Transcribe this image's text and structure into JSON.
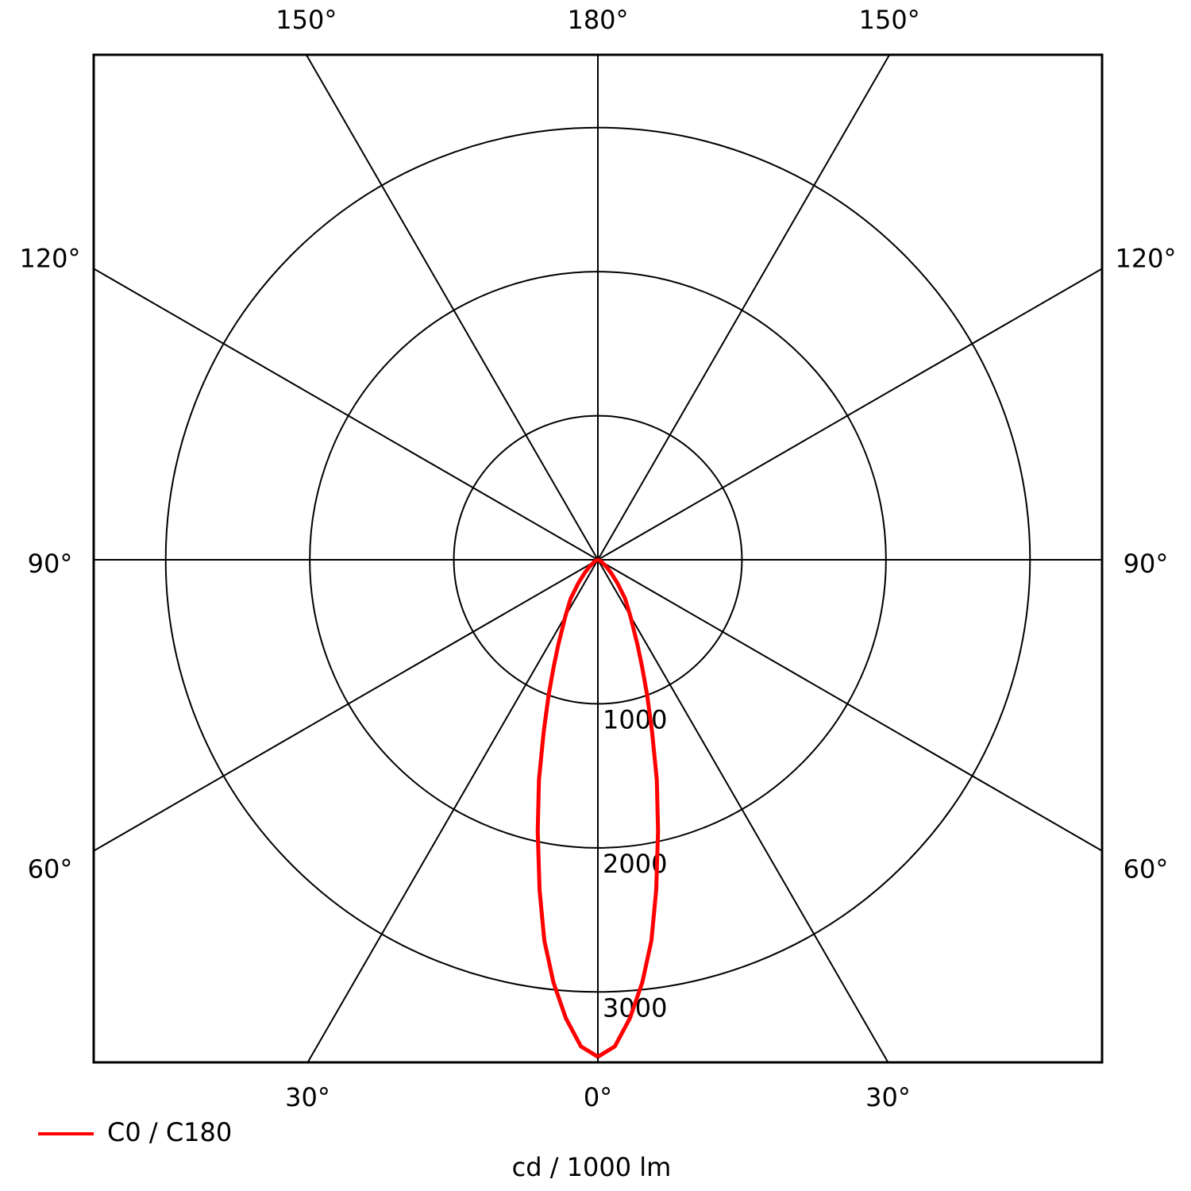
{
  "chart_data": {
    "type": "polar",
    "unit_label": "cd / 1000 lm",
    "x": [
      0,
      2,
      4,
      6,
      8,
      10,
      12.5,
      15,
      17.5,
      20,
      22.5,
      25,
      30,
      35,
      40,
      45,
      50,
      60,
      70,
      80,
      90
    ],
    "series": [
      {
        "name": "C0 / C180",
        "color": "#ff0000",
        "values": [
          3450,
          3380,
          3190,
          2950,
          2670,
          2330,
          1930,
          1580,
          1250,
          1000,
          800,
          650,
          450,
          330,
          210,
          130,
          80,
          30,
          10,
          3,
          0
        ]
      }
    ],
    "rlim": [
      0,
      3500
    ],
    "rticks": [
      1000,
      2000,
      3000
    ],
    "angle_ticks": [
      {
        "value": 0,
        "label": "0°"
      },
      {
        "value": 30,
        "label": "30°"
      },
      {
        "value": 60,
        "label": "60°"
      },
      {
        "value": 90,
        "label": "90°"
      },
      {
        "value": 120,
        "label": "120°"
      },
      {
        "value": 150,
        "label": "150°"
      },
      {
        "value": 180,
        "label": "180°"
      }
    ],
    "legend": "bottom-left"
  }
}
